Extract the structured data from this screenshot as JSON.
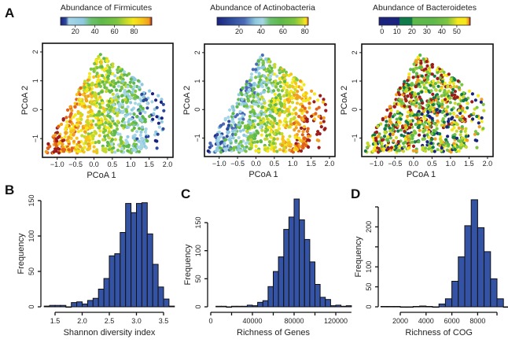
{
  "figure": {
    "panel_letters": [
      "A",
      "B",
      "C",
      "D"
    ]
  },
  "chart_data": [
    {
      "panel": "A",
      "type": "scatter",
      "title": "Abundance of Firmicutes",
      "xlabel": "PCoA 1",
      "ylabel": "PCoA 2",
      "xticks": [
        "-1.0",
        "-0.5",
        "0.0",
        "0.5",
        "1.0",
        "1.5",
        "2.0"
      ],
      "yticks": [
        "-1",
        "0",
        "1",
        "2"
      ],
      "xlim": [
        -1.4,
        2.15
      ],
      "ylim": [
        -1.65,
        2.3
      ],
      "colorbar": {
        "ticks": [
          "20",
          "40",
          "60",
          "80"
        ],
        "range": [
          5,
          98
        ],
        "gradient": "Firmicutes: low values on right (blue), high on left (red)"
      },
      "color_gradient_direction": "left_high",
      "colors": [
        "#1a237e",
        "#2e4a9c",
        "#8ec9e0",
        "#a6d6e6",
        "#5fb84a",
        "#7cc540",
        "#c6d92b",
        "#f5e81c",
        "#f7c21a",
        "#f29e1f",
        "#e2611c",
        "#9e1b1b"
      ]
    },
    {
      "panel": "A",
      "type": "scatter",
      "title": "Abundance of Actinobacteria",
      "xlabel": "PCoA 1",
      "ylabel": "PCoA 2",
      "xticks": [
        "-1.0",
        "-0.5",
        "0.0",
        "0.5",
        "1.0",
        "1.5",
        "2.0"
      ],
      "yticks": [
        "-1",
        "0",
        "1",
        "2"
      ],
      "xlim": [
        -1.4,
        2.15
      ],
      "ylim": [
        -1.65,
        2.3
      ],
      "colorbar": {
        "ticks": [
          "20",
          "40",
          "60",
          "80"
        ],
        "range": [
          0,
          83
        ]
      },
      "color_gradient_direction": "right_high",
      "colors": [
        "#1a237e",
        "#2e4a9c",
        "#4a6bb5",
        "#8ec9e0",
        "#a6d6e6",
        "#5fb84a",
        "#7cc540",
        "#c6d92b",
        "#f5e81c",
        "#f7c21a",
        "#f29e1f",
        "#e2611c",
        "#9e1b1b"
      ]
    },
    {
      "panel": "A",
      "type": "scatter",
      "title": "Abundance of Bacteroidetes",
      "xlabel": "PCoA 1",
      "ylabel": "PCoA 2",
      "xticks": [
        "-1.0",
        "-0.5",
        "0.0",
        "0.5",
        "1.0",
        "1.5",
        "2.0"
      ],
      "yticks": [
        "-1",
        "0",
        "1",
        "2"
      ],
      "xlim": [
        -1.4,
        2.15
      ],
      "ylim": [
        -1.65,
        2.3
      ],
      "colorbar": {
        "ticks": [
          "0",
          "10",
          "20",
          "30",
          "40",
          "50"
        ],
        "range": [
          -2,
          59
        ]
      },
      "color_gradient_direction": "mixed_upper_left_high",
      "colors": [
        "#1a237e",
        "#0f7a4a",
        "#5fb84a",
        "#7cc540",
        "#c6d92b",
        "#f5e81c",
        "#f29e1f",
        "#9e1b1b"
      ]
    },
    {
      "panel": "B",
      "type": "bar",
      "subtype": "histogram",
      "xlabel": "Shannon diversity index",
      "ylabel": "Frequency",
      "xticks": [
        "1.5",
        "2.0",
        "2.5",
        "3.0",
        "3.5"
      ],
      "yticks": [
        "0",
        "50",
        "100",
        "150"
      ],
      "bin_start": 1.3,
      "bin_width": 0.1,
      "values": [
        1,
        2,
        2,
        2,
        0,
        6,
        7,
        4,
        9,
        12,
        25,
        40,
        72,
        75,
        105,
        146,
        133,
        146,
        147,
        103,
        60,
        28,
        11,
        1
      ],
      "xlim": [
        1.3,
        3.7
      ],
      "ylim": [
        0,
        150
      ]
    },
    {
      "panel": "C",
      "type": "bar",
      "subtype": "histogram",
      "xlabel": "Richness of Genes",
      "ylabel": "Frequency",
      "xticks": [
        "0",
        "40000",
        "80000",
        "120000"
      ],
      "yticks": [
        "0",
        "50",
        "100",
        "150"
      ],
      "bin_start": 5000,
      "bin_width": 5000,
      "values": [
        1,
        1,
        0,
        1,
        1,
        1,
        3,
        2,
        8,
        11,
        36,
        63,
        89,
        138,
        160,
        192,
        155,
        120,
        80,
        40,
        17,
        13,
        2,
        3,
        1,
        2
      ],
      "xlim": [
        0,
        135000
      ],
      "ylim": [
        0,
        150
      ]
    },
    {
      "panel": "D",
      "type": "bar",
      "subtype": "histogram",
      "xlabel": "Richness of COG",
      "ylabel": "Frequency",
      "xticks": [
        "2000",
        "4000",
        "6000",
        "8000"
      ],
      "yticks": [
        "0",
        "50",
        "100",
        "200"
      ],
      "yticks_minor": [
        "150",
        "250"
      ],
      "bin_start": 500,
      "bin_width": 500,
      "values": [
        1,
        1,
        1,
        0,
        0,
        1,
        2,
        1,
        0,
        7,
        20,
        64,
        125,
        203,
        268,
        198,
        138,
        70,
        20,
        0,
        0
      ],
      "xlim": [
        500,
        9500
      ],
      "ylim": [
        0,
        270
      ]
    }
  ]
}
